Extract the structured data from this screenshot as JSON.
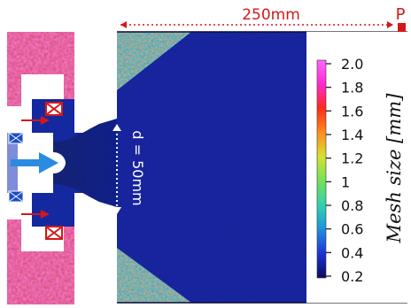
{
  "figure": {
    "top_dimension_label": "250mm",
    "probe_label": "P",
    "diameter_label": "d = 50mm"
  },
  "colorbar": {
    "title": "Mesh size [mm]",
    "ticks": [
      "2.0",
      "1.8",
      "1.6",
      "1.4",
      "1.2",
      "1",
      "0.8",
      "0.6",
      "0.4",
      "0.2"
    ],
    "range": [
      0.2,
      2.0
    ],
    "colors": [
      "#0c0c5e",
      "#1f2fd6",
      "#1c8fe0",
      "#2fd0b0",
      "#6fe15a",
      "#d8e02e",
      "#ff8a1c",
      "#ff2a18",
      "#ff2ad0",
      "#ff66ff"
    ]
  },
  "colors": {
    "fine_mesh": "#1a2ab8",
    "coarse_mesh": "#e65a20",
    "accent_dimension": "#d31818",
    "inlet_arrow": "#2b8be0",
    "injector": "#d31818"
  }
}
